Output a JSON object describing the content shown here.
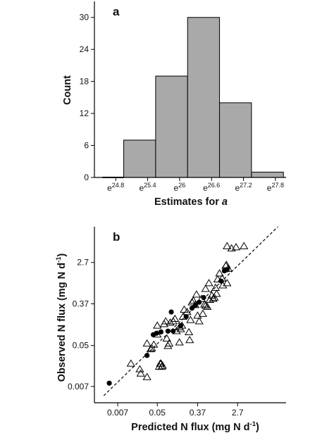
{
  "chart_data": [
    {
      "type": "bar",
      "panel_label": "a",
      "xlabel": "Estimates for ",
      "xlabel_italic": "a",
      "ylabel": "Count",
      "ylim": [
        0,
        33
      ],
      "ytick_values": [
        0,
        6,
        12,
        18,
        24,
        30
      ],
      "ytick_labels": [
        "0",
        "6",
        "12",
        "18",
        "24",
        "30"
      ],
      "xticks": [
        {
          "base": "e",
          "exp": "24.8",
          "value": 24.8
        },
        {
          "base": "e",
          "exp": "25.4",
          "value": 25.4
        },
        {
          "base": "e",
          "exp": "26",
          "value": 26.0
        },
        {
          "base": "e",
          "exp": "26.6",
          "value": 26.6
        },
        {
          "base": "e",
          "exp": "27.2",
          "value": 27.2
        },
        {
          "base": "e",
          "exp": "27.8",
          "value": 27.8
        }
      ],
      "xlim": [
        24.4,
        28.0
      ],
      "bins": [
        {
          "x0": 24.55,
          "x1": 24.95,
          "value": 0
        },
        {
          "x0": 24.95,
          "x1": 25.55,
          "value": 7
        },
        {
          "x0": 25.55,
          "x1": 26.15,
          "value": 19
        },
        {
          "x0": 26.15,
          "x1": 26.75,
          "value": 30
        },
        {
          "x0": 26.75,
          "x1": 27.35,
          "value": 14
        },
        {
          "x0": 27.35,
          "x1": 27.95,
          "value": 1
        }
      ],
      "bar_color": "#a9a9a9",
      "grid": false
    },
    {
      "type": "scatter",
      "panel_label": "b",
      "xlabel": "Predicted N flux (mg N d",
      "xlabel_sup": "-1",
      "xlabel_end": ")",
      "ylabel": "Observed N flux (mg N d",
      "ylabel_sup": "-1",
      "ylabel_end": ")",
      "scale": "log",
      "xlim": [
        0.0022,
        30
      ],
      "ylim": [
        0.0032,
        15
      ],
      "xtick_values": [
        0.007,
        0.05,
        0.37,
        2.7
      ],
      "xtick_labels": [
        "0.007",
        "0.05",
        "0.37",
        "2.7"
      ],
      "ytick_values": [
        0.007,
        0.05,
        0.37,
        2.7
      ],
      "ytick_labels": [
        "0.007",
        "0.05",
        "0.37",
        "2.7"
      ],
      "reference_line": {
        "style": "dashed",
        "points": [
          [
            0.0035,
            0.0045
          ],
          [
            20,
            15
          ]
        ]
      },
      "grid": false,
      "series": [
        {
          "marker": "open-triangle",
          "points": [
            [
              0.0135,
              0.021
            ],
            [
              0.021,
              0.016
            ],
            [
              0.022,
              0.013
            ],
            [
              0.03,
              0.011
            ],
            [
              0.03,
              0.055
            ],
            [
              0.036,
              0.042
            ],
            [
              0.038,
              0.044
            ],
            [
              0.042,
              0.052
            ],
            [
              0.05,
              0.085
            ],
            [
              0.05,
              0.13
            ],
            [
              0.055,
              0.018
            ],
            [
              0.058,
              0.021
            ],
            [
              0.06,
              0.021
            ],
            [
              0.062,
              0.018
            ],
            [
              0.065,
              0.019
            ],
            [
              0.07,
              0.14
            ],
            [
              0.076,
              0.16
            ],
            [
              0.08,
              0.07
            ],
            [
              0.085,
              0.049
            ],
            [
              0.09,
              0.055
            ],
            [
              0.095,
              0.15
            ],
            [
              0.11,
              0.16
            ],
            [
              0.12,
              0.18
            ],
            [
              0.13,
              0.1
            ],
            [
              0.15,
              0.058
            ],
            [
              0.15,
              0.12
            ],
            [
              0.16,
              0.11
            ],
            [
              0.17,
              0.13
            ],
            [
              0.18,
              0.2
            ],
            [
              0.19,
              0.28
            ],
            [
              0.22,
              0.25
            ],
            [
              0.24,
              0.095
            ],
            [
              0.25,
              0.065
            ],
            [
              0.26,
              0.17
            ],
            [
              0.28,
              0.4
            ],
            [
              0.3,
              0.43
            ],
            [
              0.33,
              0.35
            ],
            [
              0.35,
              0.58
            ],
            [
              0.37,
              0.21
            ],
            [
              0.4,
              0.16
            ],
            [
              0.45,
              0.47
            ],
            [
              0.48,
              0.23
            ],
            [
              0.52,
              0.36
            ],
            [
              0.55,
              0.34
            ],
            [
              0.6,
              0.32
            ],
            [
              0.55,
              0.76
            ],
            [
              0.65,
              1.0
            ],
            [
              0.68,
              0.45
            ],
            [
              0.75,
              0.55
            ],
            [
              0.8,
              0.47
            ],
            [
              0.95,
              0.6
            ],
            [
              0.85,
              0.5
            ],
            [
              1.0,
              1.2
            ],
            [
              1.1,
              1.6
            ],
            [
              1.3,
              0.9
            ],
            [
              1.25,
              1.25
            ],
            [
              1.5,
              2.3
            ],
            [
              1.55,
              2.4
            ],
            [
              1.6,
              1.0
            ],
            [
              1.7,
              2.0
            ],
            [
              1.6,
              5.9
            ],
            [
              2.0,
              5.3
            ],
            [
              2.5,
              5.6
            ],
            [
              3.7,
              5.9
            ],
            [
              0.9,
              0.8
            ]
          ]
        },
        {
          "marker": "filled-circle",
          "points": [
            [
              0.0046,
              0.0082
            ],
            [
              0.03,
              0.031
            ],
            [
              0.041,
              0.084
            ],
            [
              0.048,
              0.09
            ],
            [
              0.06,
              0.096
            ],
            [
              0.1,
              0.25
            ],
            [
              0.11,
              0.1
            ],
            [
              0.16,
              0.13
            ],
            [
              0.21,
              0.2
            ],
            [
              0.33,
              0.34
            ],
            [
              0.4,
              0.4
            ],
            [
              0.5,
              0.5
            ],
            [
              1.2,
              1.1
            ],
            [
              1.4,
              1.8
            ],
            [
              1.6,
              1.9
            ],
            [
              0.28,
              0.3
            ],
            [
              0.085,
              0.1
            ]
          ]
        }
      ]
    }
  ]
}
